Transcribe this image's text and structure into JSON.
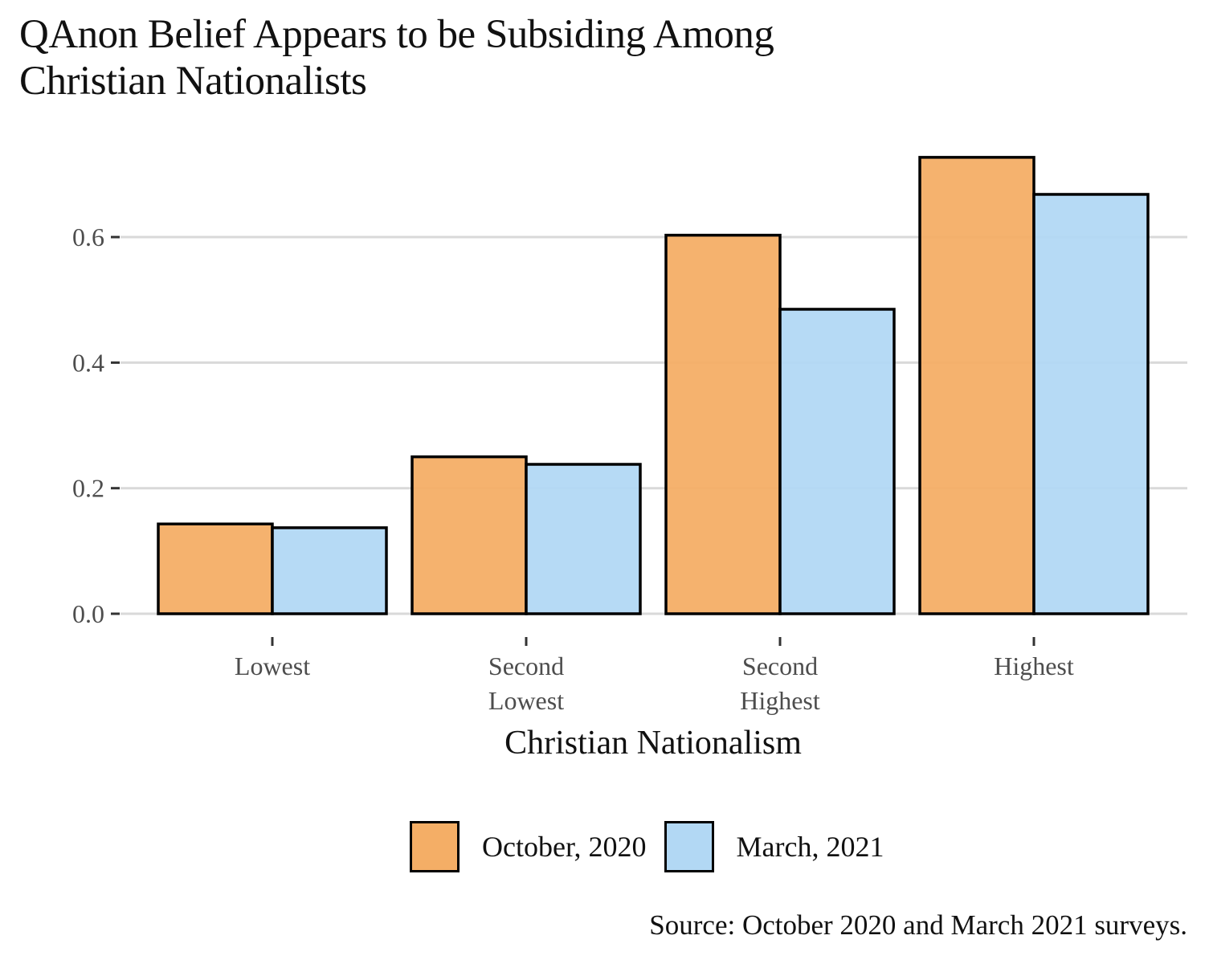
{
  "title_lines": [
    "QAnon Belief Appears to be Subsiding Among",
    "Christian Nationalists"
  ],
  "caption": "Source: October 2020 and March 2021 surveys.",
  "colors": {
    "october_2020": "#F4AE66",
    "march_2021": "#B2D8F4",
    "grid": "#d9d9d9",
    "outline": "#000000"
  },
  "chart_data": {
    "type": "bar",
    "title": "QAnon Belief Appears to be Subsiding Among Christian Nationalists",
    "xlabel": "Christian Nationalism",
    "ylabel": "",
    "categories": [
      "Lowest",
      "Second Lowest",
      "Second Highest",
      "Highest"
    ],
    "category_label_lines": [
      [
        "Lowest"
      ],
      [
        "Second",
        "Lowest"
      ],
      [
        "Second",
        "Highest"
      ],
      [
        "Highest"
      ]
    ],
    "series": [
      {
        "name": "October, 2020",
        "values": [
          0.143,
          0.25,
          0.603,
          0.727
        ]
      },
      {
        "name": "March, 2021",
        "values": [
          0.137,
          0.238,
          0.485,
          0.668
        ]
      }
    ],
    "yticks": [
      0.0,
      0.2,
      0.4,
      0.6
    ],
    "ytick_labels": [
      "0.0",
      "0.2",
      "0.4",
      "0.6"
    ],
    "ylim": [
      0,
      0.75
    ],
    "grid": true,
    "legend_position": "bottom",
    "caption": "Source: October 2020 and March 2021 surveys."
  }
}
